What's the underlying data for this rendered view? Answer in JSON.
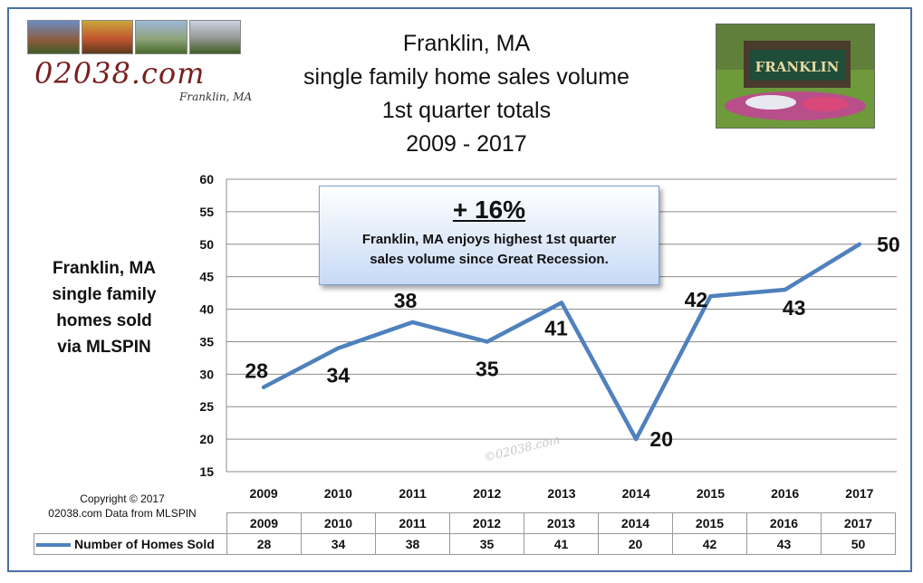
{
  "logo": {
    "site": "02038.com",
    "town": "Franklin, MA"
  },
  "title_lines": [
    "Franklin, MA",
    "single family home sales volume",
    "1st quarter totals",
    "2009 - 2017"
  ],
  "side_label": [
    "Franklin, MA",
    "single family",
    "homes sold",
    "via MLSPIN"
  ],
  "callout": {
    "headline": "+ 16%",
    "line1": "Franklin, MA enjoys highest 1st quarter",
    "line2": "sales volume since Great Recession."
  },
  "watermark": "©02038.com",
  "copyright": {
    "line1": "Copyright © 2017",
    "line2": "02038.com  Data from MLSPIN"
  },
  "colors": {
    "series": "#4f81bd",
    "frame": "#4a6fa5"
  },
  "chart_data": {
    "type": "line",
    "title": "Franklin, MA single family home sales volume 1st quarter totals 2009 - 2017",
    "categories": [
      "2009",
      "2010",
      "2011",
      "2012",
      "2013",
      "2014",
      "2015",
      "2016",
      "2017"
    ],
    "series": [
      {
        "name": "Number of Homes Sold",
        "values": [
          28,
          34,
          38,
          35,
          41,
          20,
          42,
          43,
          50
        ]
      }
    ],
    "ylim": [
      15,
      60
    ],
    "yticks": [
      15,
      20,
      25,
      30,
      35,
      40,
      45,
      50,
      55,
      60
    ],
    "grid": true,
    "data_table": true
  }
}
